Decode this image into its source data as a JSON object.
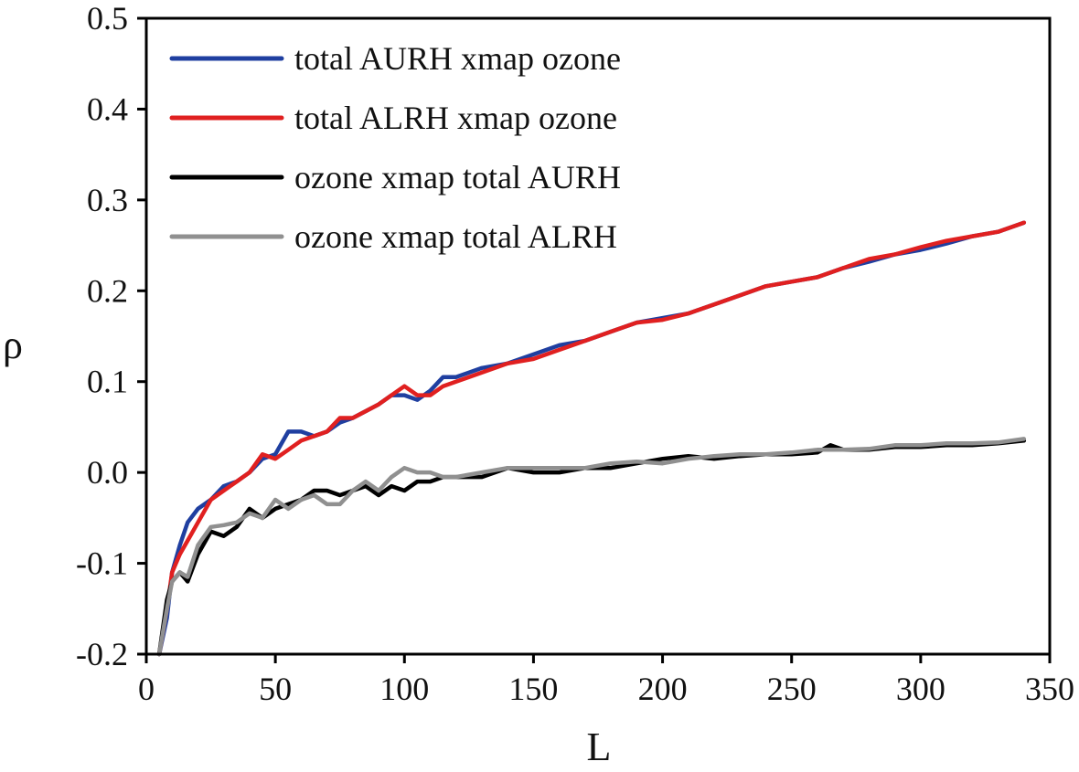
{
  "chart_data": {
    "type": "line",
    "title": "",
    "xlabel": "L",
    "ylabel": "ρ",
    "xlim": [
      0,
      350
    ],
    "ylim": [
      -0.2,
      0.5
    ],
    "xticks": [
      "0",
      "50",
      "100",
      "150",
      "200",
      "250",
      "300",
      "350"
    ],
    "yticks": [
      "-0.2",
      "-0.1",
      "0.0",
      "0.1",
      "0.2",
      "0.3",
      "0.4",
      "0.5"
    ],
    "grid": false,
    "legend_position": "top-left",
    "series": [
      {
        "name": "total AURH xmap ozone",
        "color": "#1f3fa0",
        "points": [
          [
            5,
            -0.2
          ],
          [
            8,
            -0.16
          ],
          [
            10,
            -0.11
          ],
          [
            13,
            -0.08
          ],
          [
            16,
            -0.055
          ],
          [
            20,
            -0.04
          ],
          [
            25,
            -0.03
          ],
          [
            30,
            -0.015
          ],
          [
            35,
            -0.01
          ],
          [
            40,
            0.0
          ],
          [
            45,
            0.015
          ],
          [
            50,
            0.02
          ],
          [
            55,
            0.045
          ],
          [
            60,
            0.045
          ],
          [
            65,
            0.04
          ],
          [
            70,
            0.045
          ],
          [
            75,
            0.055
          ],
          [
            80,
            0.06
          ],
          [
            90,
            0.075
          ],
          [
            95,
            0.085
          ],
          [
            100,
            0.085
          ],
          [
            105,
            0.08
          ],
          [
            110,
            0.09
          ],
          [
            115,
            0.105
          ],
          [
            120,
            0.105
          ],
          [
            130,
            0.115
          ],
          [
            140,
            0.12
          ],
          [
            150,
            0.13
          ],
          [
            160,
            0.14
          ],
          [
            170,
            0.145
          ],
          [
            180,
            0.155
          ],
          [
            190,
            0.165
          ],
          [
            200,
            0.17
          ],
          [
            210,
            0.175
          ],
          [
            220,
            0.185
          ],
          [
            230,
            0.195
          ],
          [
            240,
            0.205
          ],
          [
            250,
            0.21
          ],
          [
            260,
            0.215
          ],
          [
            270,
            0.225
          ],
          [
            280,
            0.232
          ],
          [
            290,
            0.24
          ],
          [
            300,
            0.245
          ],
          [
            310,
            0.252
          ],
          [
            320,
            0.26
          ],
          [
            330,
            0.265
          ],
          [
            340,
            0.275
          ]
        ]
      },
      {
        "name": "total ALRH xmap ozone",
        "color": "#e02020",
        "points": [
          [
            5,
            -0.2
          ],
          [
            8,
            -0.15
          ],
          [
            10,
            -0.11
          ],
          [
            13,
            -0.09
          ],
          [
            16,
            -0.075
          ],
          [
            20,
            -0.055
          ],
          [
            25,
            -0.03
          ],
          [
            30,
            -0.02
          ],
          [
            35,
            -0.01
          ],
          [
            40,
            0.0
          ],
          [
            45,
            0.02
          ],
          [
            50,
            0.015
          ],
          [
            55,
            0.025
          ],
          [
            60,
            0.035
          ],
          [
            65,
            0.04
          ],
          [
            70,
            0.045
          ],
          [
            75,
            0.06
          ],
          [
            80,
            0.06
          ],
          [
            90,
            0.075
          ],
          [
            95,
            0.085
          ],
          [
            100,
            0.095
          ],
          [
            105,
            0.085
          ],
          [
            110,
            0.085
          ],
          [
            115,
            0.095
          ],
          [
            120,
            0.1
          ],
          [
            130,
            0.11
          ],
          [
            140,
            0.12
          ],
          [
            150,
            0.125
          ],
          [
            160,
            0.135
          ],
          [
            170,
            0.145
          ],
          [
            180,
            0.155
          ],
          [
            190,
            0.165
          ],
          [
            200,
            0.168
          ],
          [
            210,
            0.175
          ],
          [
            220,
            0.185
          ],
          [
            230,
            0.195
          ],
          [
            240,
            0.205
          ],
          [
            250,
            0.21
          ],
          [
            260,
            0.215
          ],
          [
            270,
            0.225
          ],
          [
            280,
            0.235
          ],
          [
            290,
            0.24
          ],
          [
            300,
            0.248
          ],
          [
            310,
            0.255
          ],
          [
            320,
            0.26
          ],
          [
            330,
            0.265
          ],
          [
            340,
            0.275
          ]
        ]
      },
      {
        "name": "ozone xmap total AURH",
        "color": "#000000",
        "points": [
          [
            5,
            -0.2
          ],
          [
            8,
            -0.14
          ],
          [
            10,
            -0.12
          ],
          [
            13,
            -0.11
          ],
          [
            16,
            -0.12
          ],
          [
            20,
            -0.09
          ],
          [
            25,
            -0.065
          ],
          [
            30,
            -0.07
          ],
          [
            35,
            -0.06
          ],
          [
            40,
            -0.04
          ],
          [
            45,
            -0.05
          ],
          [
            50,
            -0.04
          ],
          [
            55,
            -0.035
          ],
          [
            60,
            -0.03
          ],
          [
            65,
            -0.02
          ],
          [
            70,
            -0.02
          ],
          [
            75,
            -0.025
          ],
          [
            80,
            -0.02
          ],
          [
            85,
            -0.015
          ],
          [
            90,
            -0.025
          ],
          [
            95,
            -0.015
          ],
          [
            100,
            -0.02
          ],
          [
            105,
            -0.01
          ],
          [
            110,
            -0.01
          ],
          [
            115,
            -0.005
          ],
          [
            120,
            -0.005
          ],
          [
            130,
            -0.005
          ],
          [
            140,
            0.005
          ],
          [
            150,
            0.0
          ],
          [
            160,
            0.0
          ],
          [
            170,
            0.005
          ],
          [
            180,
            0.005
          ],
          [
            190,
            0.01
          ],
          [
            200,
            0.015
          ],
          [
            210,
            0.018
          ],
          [
            220,
            0.015
          ],
          [
            230,
            0.018
          ],
          [
            240,
            0.02
          ],
          [
            250,
            0.02
          ],
          [
            260,
            0.022
          ],
          [
            265,
            0.03
          ],
          [
            270,
            0.025
          ],
          [
            280,
            0.025
          ],
          [
            290,
            0.028
          ],
          [
            300,
            0.028
          ],
          [
            310,
            0.03
          ],
          [
            320,
            0.03
          ],
          [
            330,
            0.032
          ],
          [
            340,
            0.035
          ]
        ]
      },
      {
        "name": "ozone xmap total ALRH",
        "color": "#909090",
        "points": [
          [
            5,
            -0.2
          ],
          [
            8,
            -0.15
          ],
          [
            10,
            -0.12
          ],
          [
            13,
            -0.11
          ],
          [
            16,
            -0.115
          ],
          [
            20,
            -0.08
          ],
          [
            25,
            -0.06
          ],
          [
            30,
            -0.058
          ],
          [
            35,
            -0.055
          ],
          [
            40,
            -0.045
          ],
          [
            45,
            -0.05
          ],
          [
            50,
            -0.03
          ],
          [
            55,
            -0.04
          ],
          [
            60,
            -0.03
          ],
          [
            65,
            -0.025
          ],
          [
            70,
            -0.035
          ],
          [
            75,
            -0.035
          ],
          [
            80,
            -0.02
          ],
          [
            85,
            -0.01
          ],
          [
            90,
            -0.02
          ],
          [
            95,
            -0.005
          ],
          [
            100,
            0.005
          ],
          [
            105,
            0.0
          ],
          [
            110,
            0.0
          ],
          [
            115,
            -0.005
          ],
          [
            120,
            -0.005
          ],
          [
            130,
            0.0
          ],
          [
            140,
            0.005
          ],
          [
            150,
            0.005
          ],
          [
            160,
            0.005
          ],
          [
            170,
            0.005
          ],
          [
            180,
            0.01
          ],
          [
            190,
            0.012
          ],
          [
            200,
            0.01
          ],
          [
            210,
            0.015
          ],
          [
            220,
            0.018
          ],
          [
            230,
            0.02
          ],
          [
            240,
            0.02
          ],
          [
            250,
            0.022
          ],
          [
            260,
            0.025
          ],
          [
            270,
            0.025
          ],
          [
            280,
            0.026
          ],
          [
            290,
            0.03
          ],
          [
            300,
            0.03
          ],
          [
            310,
            0.032
          ],
          [
            320,
            0.032
          ],
          [
            330,
            0.033
          ],
          [
            340,
            0.037
          ]
        ]
      }
    ]
  }
}
